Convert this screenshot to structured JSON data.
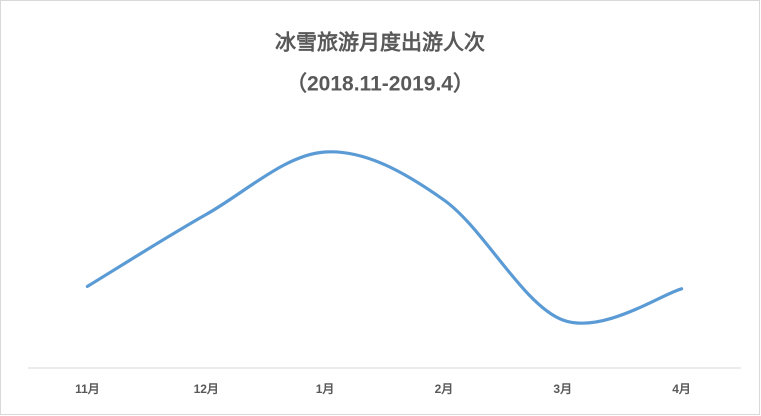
{
  "chart_data": {
    "type": "line",
    "title": "冰雪旅游月度出游人次",
    "subtitle": "（2018.11-2019.4）",
    "categories": [
      "11月",
      "12月",
      "1月",
      "2月",
      "3月",
      "4月"
    ],
    "values": [
      34,
      64,
      90,
      70,
      20,
      33
    ],
    "color": "#5b9bd5",
    "smooth": true,
    "ylim": [
      0,
      100
    ]
  }
}
